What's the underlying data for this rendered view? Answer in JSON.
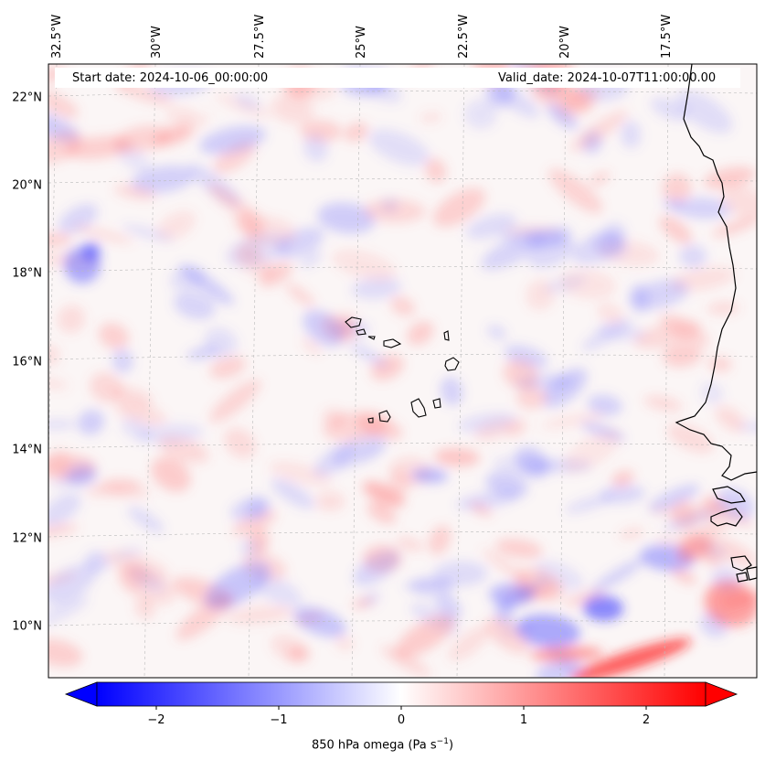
{
  "map": {
    "start_date": "Start date: 2024-10-06_00:00:00",
    "valid_date": "Valid_date: 2024-10-07T11:00:00.00",
    "lon_labels": [
      "32.5°W",
      "30°W",
      "27.5°W",
      "25°W",
      "22.5°W",
      "20°W",
      "17.5°W"
    ],
    "lat_labels": [
      "22°N",
      "20°N",
      "18°N",
      "16°N",
      "14°N",
      "12°N",
      "10°N"
    ],
    "projection": "Lambert-like conic, graticule dashed light grey",
    "coastline_color": "#000000"
  },
  "colorbar": {
    "label_prefix": "850 hPa omega (Pa s",
    "label_exp": "−1",
    "label_suffix": ")",
    "ticks": [
      "−2",
      "−1",
      "0",
      "1",
      "2"
    ],
    "range": [
      -2.6,
      2.6
    ],
    "colors": {
      "min": "#0000ff",
      "mid": "#ffffff",
      "max": "#ff0000"
    }
  }
}
